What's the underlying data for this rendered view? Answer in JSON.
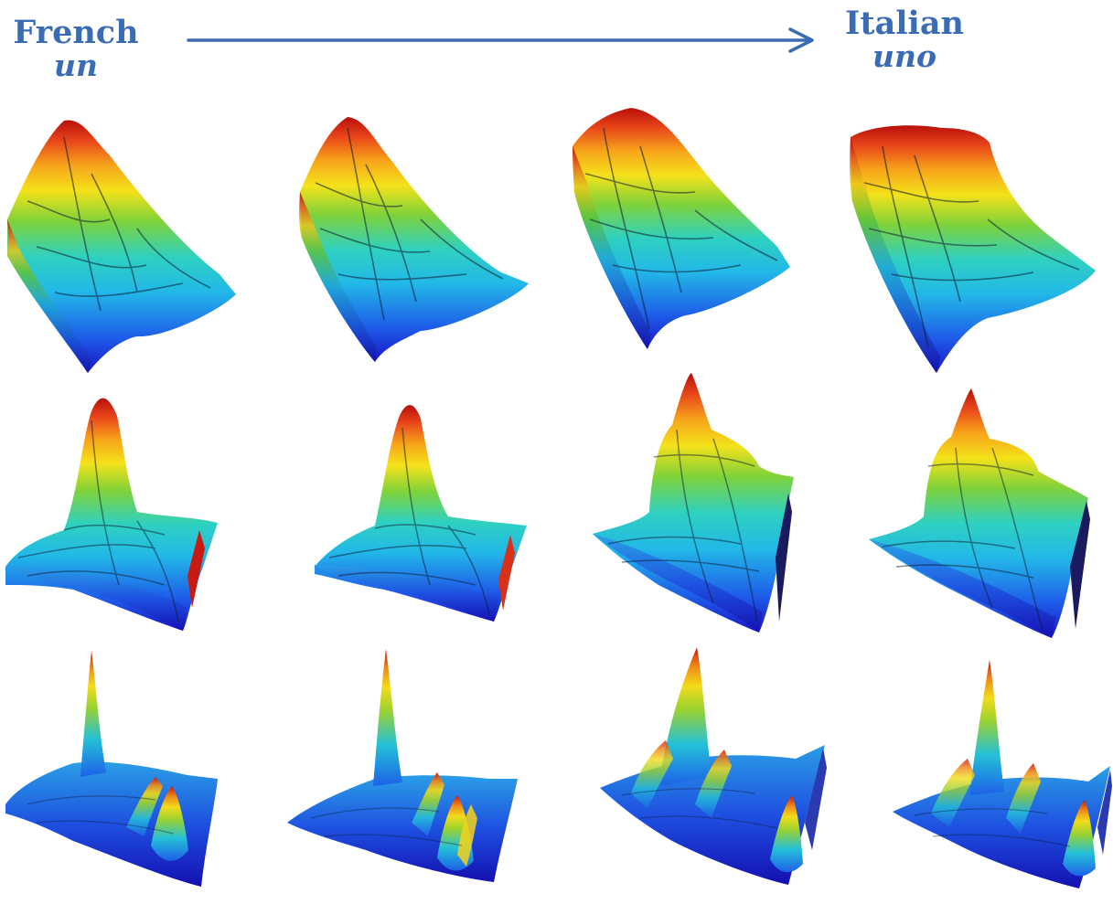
{
  "start": {
    "language": "French",
    "word": "un"
  },
  "end": {
    "language": "Italian",
    "word": "uno"
  },
  "gradient": [
    "#1a14c8",
    "#1e5ce8",
    "#22b8e8",
    "#2fd1c0",
    "#7fd23a",
    "#f4e21a",
    "#f7a51a",
    "#e8441a",
    "#b8100a"
  ],
  "grid": {
    "rows": 3,
    "columns": 4
  }
}
